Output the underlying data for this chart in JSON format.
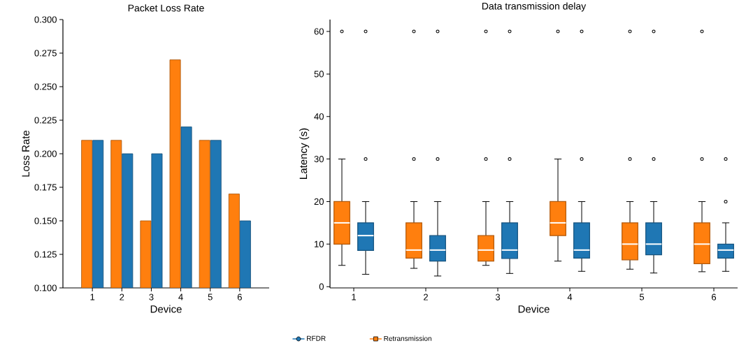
{
  "chart_data": [
    {
      "type": "bar",
      "title": "Packet Loss Rate",
      "xlabel": "Device",
      "ylabel": "Loss Rate",
      "categories": [
        "1",
        "2",
        "3",
        "4",
        "5",
        "6"
      ],
      "ylim": [
        0.1,
        0.3
      ],
      "yticks": [
        {
          "value": 0.1,
          "label": "0.100"
        },
        {
          "value": 0.125,
          "label": "0.125"
        },
        {
          "value": 0.15,
          "label": "0.150"
        },
        {
          "value": 0.175,
          "label": "0.175"
        },
        {
          "value": 0.2,
          "label": "0.200"
        },
        {
          "value": 0.225,
          "label": "0.225"
        },
        {
          "value": 0.25,
          "label": "0.250"
        },
        {
          "value": 0.275,
          "label": "0.275"
        },
        {
          "value": 0.3,
          "label": "0.300"
        }
      ],
      "series": [
        {
          "color": "#ff7f0e",
          "values": [
            0.21,
            0.21,
            0.15,
            0.27,
            0.21,
            0.17
          ]
        },
        {
          "color": "#1f77b4",
          "values": [
            0.21,
            0.2,
            0.2,
            0.22,
            0.21,
            0.15
          ]
        }
      ]
    },
    {
      "type": "box",
      "title": "Data transmission delay",
      "xlabel": "Device",
      "ylabel": "Latency (s)",
      "categories": [
        "1",
        "2",
        "3",
        "4",
        "5",
        "6"
      ],
      "ylim": [
        -0.3,
        62.8
      ],
      "yticks": [
        0,
        10,
        20,
        30,
        40,
        50,
        60
      ],
      "legend": "bottom",
      "series": [
        {
          "name": "Retransmission",
          "color": "#ff7f0e",
          "marker": "square",
          "boxes": [
            {
              "low": 5,
              "q1": 10,
              "median": 15,
              "q3": 20,
              "high": 30,
              "outliers": [
                60
              ]
            },
            {
              "low": 4.3,
              "q1": 6.7,
              "median": 8.6,
              "q3": 15,
              "high": 20,
              "outliers": [
                30,
                60
              ]
            },
            {
              "low": 5,
              "q1": 6,
              "median": 8.6,
              "q3": 12,
              "high": 20,
              "outliers": [
                30,
                60
              ]
            },
            {
              "low": 6,
              "q1": 12,
              "median": 15,
              "q3": 20,
              "high": 30,
              "outliers": [
                60
              ]
            },
            {
              "low": 4.1,
              "q1": 6.3,
              "median": 10,
              "q3": 15,
              "high": 20,
              "outliers": [
                30,
                60
              ]
            },
            {
              "low": 3.5,
              "q1": 5.4,
              "median": 10,
              "q3": 15,
              "high": 20,
              "outliers": [
                30,
                60
              ]
            }
          ]
        },
        {
          "name": "RFDR",
          "color": "#1f77b4",
          "marker": "circle",
          "boxes": [
            {
              "low": 2.9,
              "q1": 8.5,
              "median": 12,
              "q3": 15,
              "high": 20,
              "outliers": [
                30,
                60
              ]
            },
            {
              "low": 2.5,
              "q1": 6,
              "median": 8.6,
              "q3": 12,
              "high": 20,
              "outliers": [
                30,
                60
              ]
            },
            {
              "low": 3.1,
              "q1": 6.6,
              "median": 8.6,
              "q3": 15,
              "high": 20,
              "outliers": [
                30,
                60
              ]
            },
            {
              "low": 3.6,
              "q1": 6.7,
              "median": 8.6,
              "q3": 15,
              "high": 20,
              "outliers": [
                30,
                60
              ]
            },
            {
              "low": 3.2,
              "q1": 7.5,
              "median": 10,
              "q3": 15,
              "high": 20,
              "outliers": [
                30,
                60
              ]
            },
            {
              "low": 3.6,
              "q1": 6.7,
              "median": 8.6,
              "q3": 10,
              "high": 15,
              "outliers": [
                20,
                30
              ]
            }
          ]
        }
      ]
    }
  ]
}
